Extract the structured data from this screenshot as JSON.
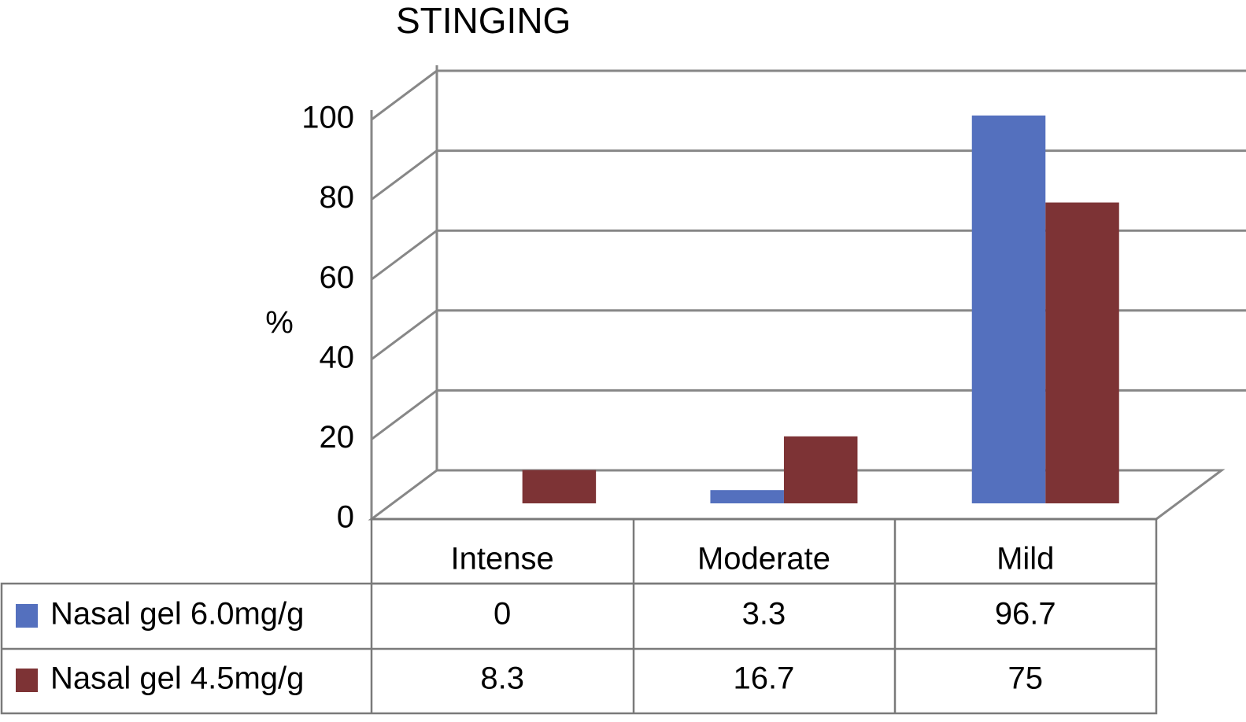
{
  "chart_data": {
    "type": "bar",
    "title": "STINGING",
    "y_label": "%",
    "categories": [
      "Intense",
      "Moderate",
      "Mild"
    ],
    "series": [
      {
        "name": "Nasal gel 6.0mg/g",
        "color": "#5470be",
        "values": [
          0,
          3.3,
          96.7
        ]
      },
      {
        "name": "Nasal gel 4.5mg/g",
        "color": "#7d3335",
        "values": [
          8.3,
          16.7,
          75
        ]
      }
    ],
    "ylim": [
      0,
      100
    ],
    "yticks": [
      0,
      20,
      40,
      60,
      80,
      100
    ],
    "grid": true
  }
}
